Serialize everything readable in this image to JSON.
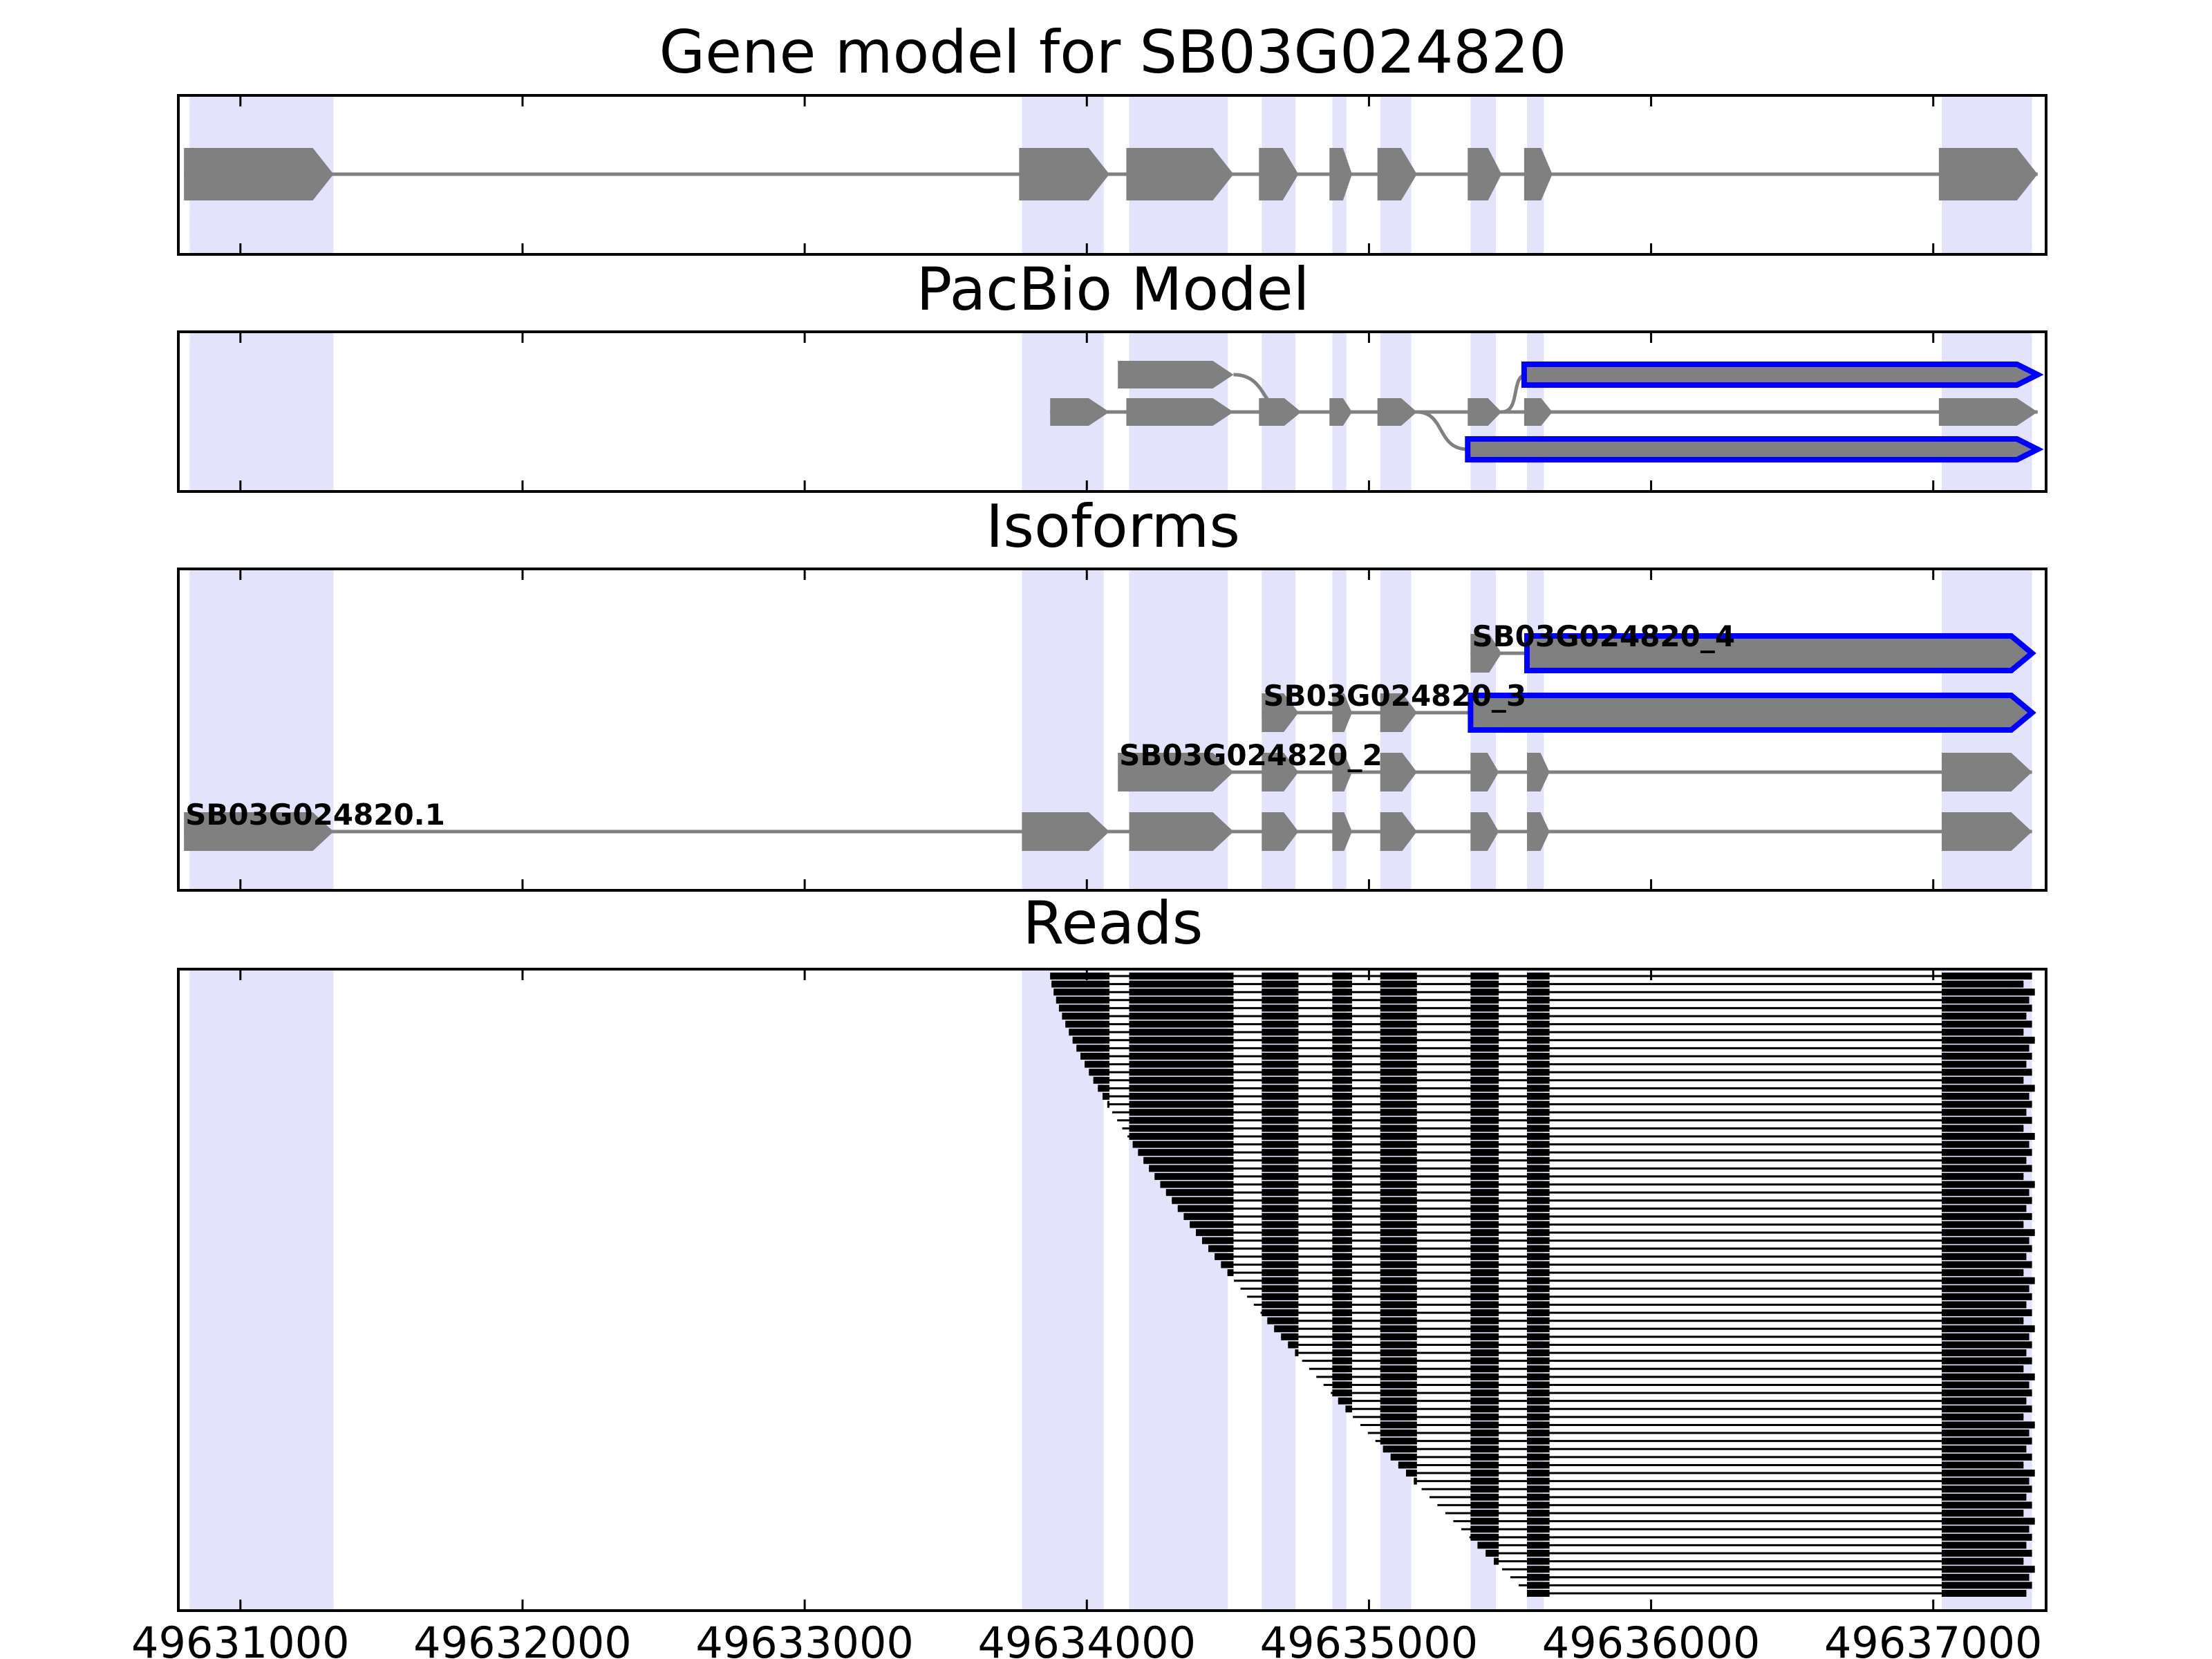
{
  "chart_data": {
    "type": "gene-track",
    "x_ticks": [
      49631000,
      49632000,
      49633000,
      49634000,
      49635000,
      49636000,
      49637000
    ],
    "x_tick_labels": [
      "49631000",
      "49632000",
      "49633000",
      "49634000",
      "49635000",
      "49636000",
      "49637000"
    ],
    "xlim": [
      49630780,
      49637400
    ],
    "colors": {
      "exon_fill": "#808080",
      "intron_line": "#808080",
      "highlight_band": "#e3e3fb",
      "isoform_outline": "#0000ff",
      "read": "#000000",
      "axes": "#000000"
    },
    "highlight_regions": [
      [
        49630820,
        49631330
      ],
      [
        49633770,
        49634060
      ],
      [
        49634150,
        49634500
      ],
      [
        49634620,
        49634740
      ],
      [
        49634870,
        49634920
      ],
      [
        49635040,
        49635150
      ],
      [
        49635360,
        49635450
      ],
      [
        49635560,
        49635620
      ],
      [
        49637030,
        49637350
      ]
    ],
    "panels": [
      {
        "title": "Gene model for SB03G024820",
        "tracks": [
          {
            "row": 0,
            "exons": [
              [
                49630800,
                49631330
              ],
              [
                49633760,
                49634080
              ],
              [
                49634140,
                49634520
              ],
              [
                49634610,
                49634750
              ],
              [
                49634860,
                49634940
              ],
              [
                49635030,
                49635170
              ],
              [
                49635350,
                49635470
              ],
              [
                49635550,
                49635650
              ],
              [
                49637020,
                49637370
              ]
            ],
            "outlined": false
          }
        ],
        "rows": 1
      },
      {
        "title": "PacBio Model",
        "tracks": [
          {
            "row": 0,
            "exons": [
              [
                49633870,
                49634080
              ],
              [
                49634140,
                49634520
              ],
              [
                49634610,
                49634760
              ],
              [
                49634860,
                49634940
              ],
              [
                49635030,
                49635170
              ],
              [
                49635350,
                49635470
              ],
              [
                49635550,
                49635650
              ],
              [
                49637020,
                49637370
              ]
            ],
            "outlined": false
          },
          {
            "row": 1,
            "exons": [
              [
                49634110,
                49634520
              ]
            ],
            "join": [
              49634710,
              49635550
            ],
            "tail": [
              [
                49635550,
                49637370
              ]
            ],
            "outlined_tail": true
          },
          {
            "row": -1,
            "exons": [
              [
                49635030,
                49635170
              ]
            ],
            "join_down": [
              49635170,
              49635350
            ],
            "tail": [
              [
                49635350,
                49637370
              ]
            ],
            "outlined_tail": true
          }
        ],
        "rows": 3
      },
      {
        "title": "Isoforms",
        "isoforms": [
          {
            "name": "SB03G024820.1",
            "row": 0,
            "exons": [
              [
                49630800,
                49631330
              ],
              [
                49633770,
                49634080
              ],
              [
                49634150,
                49634520
              ],
              [
                49634620,
                49634750
              ],
              [
                49634870,
                49634940
              ],
              [
                49635040,
                49635170
              ],
              [
                49635360,
                49635460
              ],
              [
                49635560,
                49635640
              ],
              [
                49637030,
                49637350
              ]
            ],
            "outlined": []
          },
          {
            "name": "SB03G024820_2",
            "row": 1,
            "exons": [
              [
                49634110,
                49634520
              ],
              [
                49634620,
                49634750
              ],
              [
                49634870,
                49634940
              ],
              [
                49635040,
                49635170
              ],
              [
                49635360,
                49635460
              ],
              [
                49635560,
                49635640
              ],
              [
                49637030,
                49637350
              ]
            ],
            "outlined": []
          },
          {
            "name": "SB03G024820_3",
            "row": 2,
            "exons": [
              [
                49634620,
                49634750
              ],
              [
                49634870,
                49634940
              ],
              [
                49635040,
                49635170
              ],
              [
                49635360,
                49637350
              ]
            ],
            "outlined": [
              3
            ]
          },
          {
            "name": "SB03G024820_4",
            "row": 3,
            "exons": [
              [
                49635360,
                49635470
              ],
              [
                49635560,
                49637350
              ]
            ],
            "outlined": [
              1
            ]
          }
        ],
        "rows": 4
      },
      {
        "title": "Reads",
        "reads": {
          "count": 78,
          "block_stops": [
            49634080,
            49634520,
            49634750,
            49634940,
            49635170,
            49635460,
            49635640,
            49637350
          ],
          "block_starts": [
            49633870,
            49634150,
            49634620,
            49634870,
            49635040,
            49635360,
            49635560,
            49637030
          ],
          "start_first": 49633870,
          "start_last": 49635560,
          "end_values": [
            49637350,
            49637320,
            49637360,
            49637340,
            49637350,
            49637330
          ]
        }
      }
    ]
  }
}
